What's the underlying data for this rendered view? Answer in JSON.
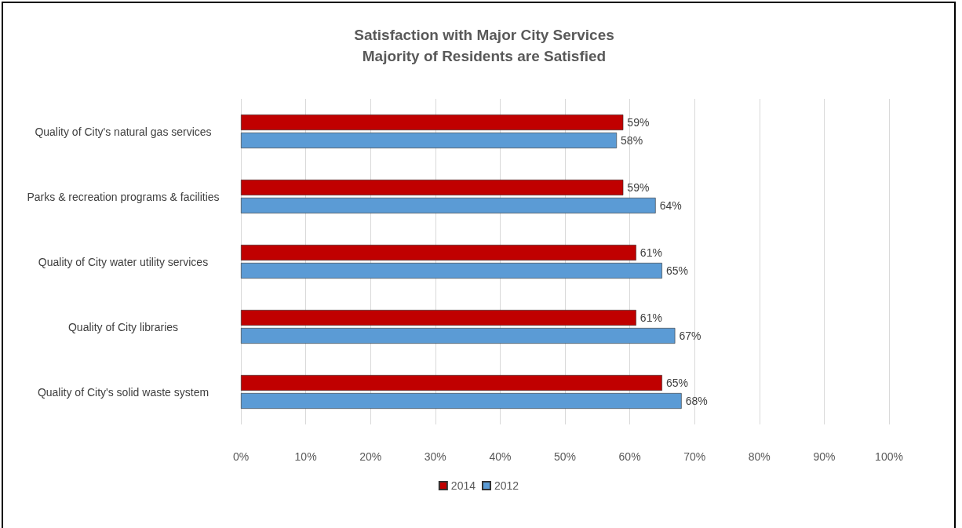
{
  "chart_data": {
    "type": "bar",
    "orientation": "horizontal",
    "title": "Satisfaction with Major City Services",
    "subtitle": "Majority of Residents are Satisfied",
    "categories": [
      "Quality of City's natural gas services",
      "Parks & recreation programs & facilities",
      "Quality of City water utility services",
      "Quality of City libraries",
      "Quality of City's solid waste system"
    ],
    "series": [
      {
        "name": "2014",
        "color": "#c00000",
        "values": [
          59,
          59,
          61,
          61,
          65
        ],
        "value_labels": [
          "59%",
          "59%",
          "61%",
          "61%",
          "65%"
        ]
      },
      {
        "name": "2012",
        "color": "#5b9bd5",
        "values": [
          58,
          64,
          65,
          67,
          68
        ],
        "value_labels": [
          "58%",
          "64%",
          "65%",
          "67%",
          "68%"
        ]
      }
    ],
    "xlim": [
      0,
      100
    ],
    "xticks": [
      {
        "value": 0,
        "label": "0%"
      },
      {
        "value": 10,
        "label": "10%"
      },
      {
        "value": 20,
        "label": "20%"
      },
      {
        "value": 30,
        "label": "30%"
      },
      {
        "value": 40,
        "label": "40%"
      },
      {
        "value": 50,
        "label": "50%"
      },
      {
        "value": 60,
        "label": "60%"
      },
      {
        "value": 70,
        "label": "70%"
      },
      {
        "value": 80,
        "label": "80%"
      },
      {
        "value": 90,
        "label": "90%"
      },
      {
        "value": 100,
        "label": "100%"
      }
    ],
    "grid": "x",
    "legend": "bottom"
  }
}
